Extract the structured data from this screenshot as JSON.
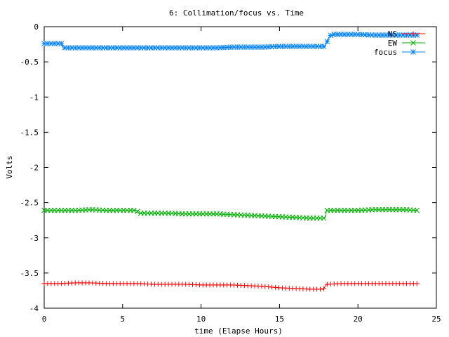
{
  "chart_data": {
    "type": "line",
    "title": "6: Collimation/focus vs. Time",
    "xlabel": "time (Elapse Hours)",
    "ylabel": "Volts",
    "xlim": [
      0,
      25
    ],
    "ylim": [
      -4,
      0
    ],
    "xticks": [
      "0",
      "5",
      "10",
      "15",
      "20",
      "25"
    ],
    "yticks": [
      "0",
      "-0.5",
      "-1",
      "-1.5",
      "-2",
      "-2.5",
      "-3",
      "-3.5",
      "-4"
    ],
    "xtick_values": [
      0,
      5,
      10,
      15,
      20,
      25
    ],
    "ytick_values": [
      0,
      -0.5,
      -1,
      -1.5,
      -2,
      -2.5,
      -3,
      -3.5,
      -4
    ],
    "grid": false,
    "legend_position": "top-right",
    "series": [
      {
        "name": "NS",
        "color": "#ff0000",
        "marker": "plus",
        "x": [
          0,
          1,
          2,
          3,
          4,
          5,
          6,
          7,
          8,
          9,
          10,
          11,
          12,
          13,
          14,
          15,
          16,
          17,
          17.8,
          18.0,
          19,
          20,
          21,
          22,
          23,
          23.8
        ],
        "y": [
          -3.65,
          -3.65,
          -3.64,
          -3.64,
          -3.65,
          -3.65,
          -3.65,
          -3.66,
          -3.66,
          -3.66,
          -3.67,
          -3.67,
          -3.67,
          -3.68,
          -3.69,
          -3.71,
          -3.72,
          -3.73,
          -3.73,
          -3.66,
          -3.65,
          -3.65,
          -3.65,
          -3.65,
          -3.65,
          -3.65
        ]
      },
      {
        "name": "EW",
        "color": "#00b000",
        "marker": "x",
        "x": [
          0,
          1,
          2,
          3,
          4,
          5,
          5.9,
          6.0,
          7,
          8,
          9,
          10,
          11,
          12,
          13,
          14,
          15,
          16,
          17,
          17.9,
          18.0,
          19,
          20,
          21,
          22,
          23,
          23.8
        ],
        "y": [
          -2.61,
          -2.61,
          -2.61,
          -2.6,
          -2.61,
          -2.61,
          -2.61,
          -2.65,
          -2.65,
          -2.65,
          -2.66,
          -2.66,
          -2.66,
          -2.67,
          -2.68,
          -2.69,
          -2.7,
          -2.71,
          -2.72,
          -2.72,
          -2.61,
          -2.61,
          -2.61,
          -2.6,
          -2.6,
          -2.6,
          -2.61
        ]
      },
      {
        "name": "focus",
        "color": "#0080ff",
        "marker": "star",
        "x": [
          0,
          0.5,
          1.1,
          1.2,
          2,
          3,
          4,
          5,
          6,
          7,
          8,
          9,
          10,
          11,
          12,
          13,
          14,
          15,
          16,
          17,
          17.9,
          18.1,
          18.3,
          19,
          20,
          21,
          22,
          23,
          23.8
        ],
        "y": [
          -0.24,
          -0.24,
          -0.24,
          -0.3,
          -0.3,
          -0.3,
          -0.3,
          -0.3,
          -0.3,
          -0.3,
          -0.3,
          -0.3,
          -0.3,
          -0.3,
          -0.29,
          -0.29,
          -0.29,
          -0.28,
          -0.28,
          -0.28,
          -0.28,
          -0.18,
          -0.11,
          -0.11,
          -0.11,
          -0.12,
          -0.12,
          -0.12,
          -0.12
        ]
      }
    ]
  }
}
